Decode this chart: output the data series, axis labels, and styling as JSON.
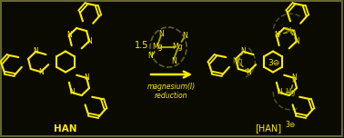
{
  "bg_color": "#0a0a00",
  "border_color": "#666633",
  "yellow": "#ffee00",
  "dark_yellow": "#aaaa00",
  "fig_width": 3.78,
  "fig_height": 1.52,
  "dpi": 100,
  "HAN_label": "HAN",
  "product_label": "[HAN]",
  "product_superscript": "3⊖",
  "reagent_label_1": "magnesium(I)",
  "reagent_label_2": "reduction",
  "stoich": "1.5",
  "charge_label": "3⊖"
}
